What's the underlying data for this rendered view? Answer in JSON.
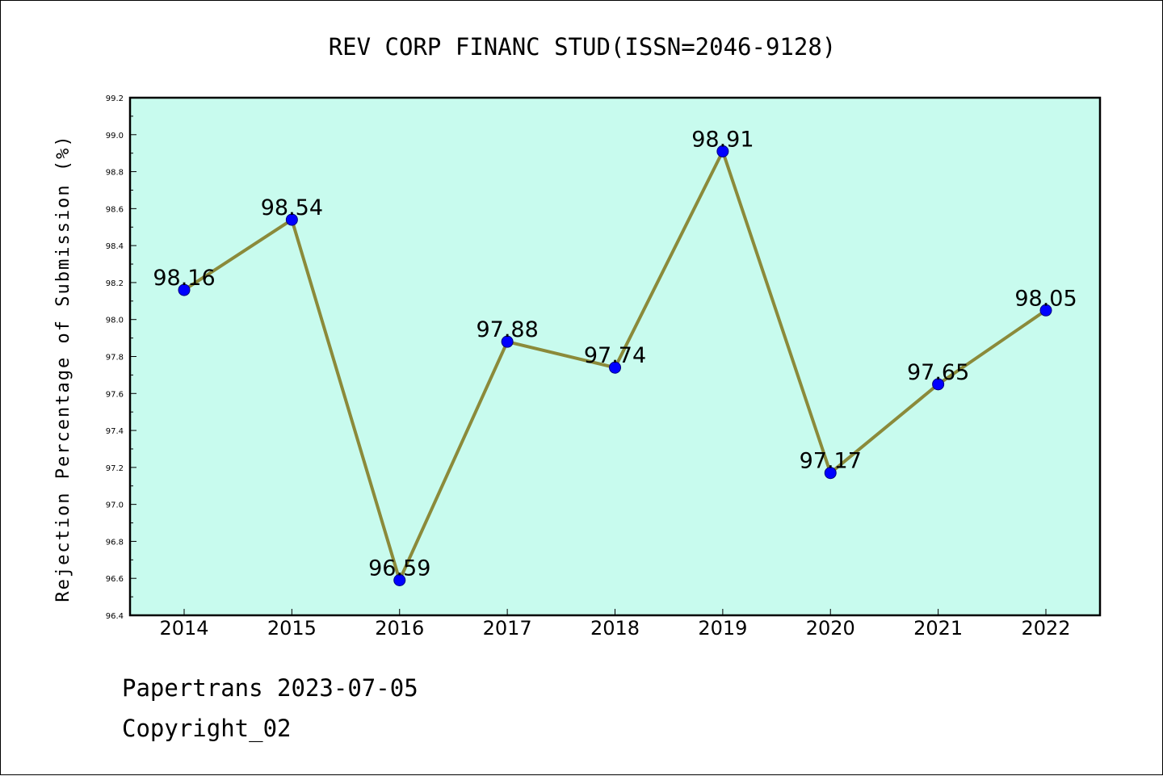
{
  "colors": {
    "plot_background": "#c8fbee",
    "line": "#8b8a3a",
    "marker": "#0000ff",
    "marker_edge": "#000080",
    "axis": "#000000"
  },
  "footer": {
    "line1": "Papertrans 2023-07-05",
    "line2": "Copyright_02"
  },
  "chart_data": {
    "type": "line",
    "title": "REV CORP FINANC STUD(ISSN=2046-9128)",
    "xlabel": "",
    "ylabel": "Rejection Percentage of Submission (%)",
    "categories": [
      "2014",
      "2015",
      "2016",
      "2017",
      "2018",
      "2019",
      "2020",
      "2021",
      "2022"
    ],
    "series": [
      {
        "values": [
          98.16,
          98.54,
          96.59,
          97.88,
          97.74,
          98.91,
          97.17,
          97.65,
          98.05
        ],
        "labels": [
          "98.16",
          "98.54",
          "96.59",
          "97.88",
          "97.74",
          "98.91",
          "97.17",
          "97.65",
          "98.05"
        ]
      }
    ],
    "ylim": [
      96.4,
      99.2
    ],
    "yticks": [
      "96.4",
      "96.6",
      "96.8",
      "97.0",
      "97.2",
      "97.4",
      "97.6",
      "97.8",
      "98.0",
      "98.2",
      "98.4",
      "98.6",
      "98.8",
      "99.0",
      "99.2"
    ],
    "grid": false,
    "legend": "none"
  }
}
